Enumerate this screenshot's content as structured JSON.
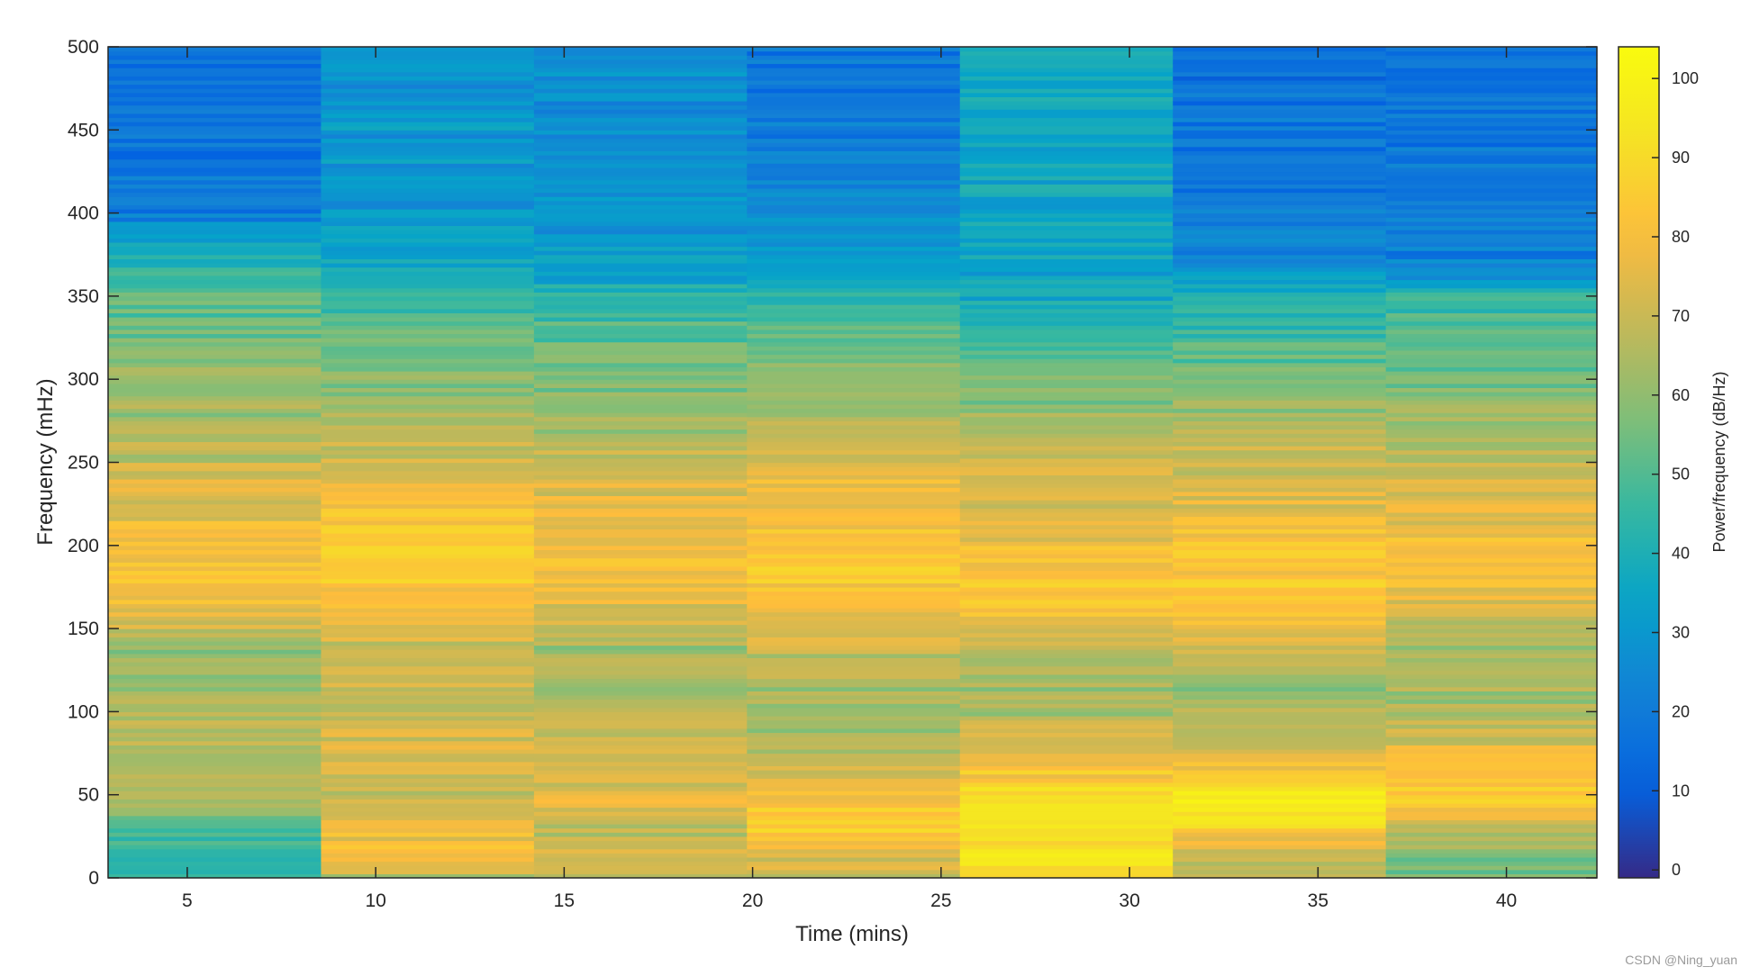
{
  "chart_data": {
    "type": "heatmap",
    "title": "",
    "xlabel": "Time (mins)",
    "ylabel": "Frequency (mHz)",
    "colorbar_label": "Power/frequency (dB/Hz)",
    "xlim": [
      2.9,
      42.4
    ],
    "ylim": [
      0,
      500
    ],
    "clim": [
      -1,
      104
    ],
    "xticks": [
      5,
      10,
      15,
      20,
      25,
      30,
      35,
      40
    ],
    "yticks": [
      0,
      50,
      100,
      150,
      200,
      250,
      300,
      350,
      400,
      450,
      500
    ],
    "cticks": [
      0,
      10,
      20,
      30,
      40,
      50,
      60,
      70,
      80,
      90,
      100
    ],
    "colormap": "parula",
    "time_segments": [
      {
        "start": 2.9,
        "end": 8.55
      },
      {
        "start": 8.55,
        "end": 14.2
      },
      {
        "start": 14.2,
        "end": 19.85
      },
      {
        "start": 19.85,
        "end": 25.5
      },
      {
        "start": 25.5,
        "end": 31.15
      },
      {
        "start": 31.15,
        "end": 36.8
      },
      {
        "start": 36.8,
        "end": 42.4
      }
    ],
    "profile_freqs": [
      0,
      5,
      15,
      25,
      40,
      50,
      60,
      75,
      100,
      120,
      140,
      150,
      160,
      180,
      200,
      220,
      240,
      260,
      280,
      300,
      330,
      350,
      360,
      380,
      400,
      420,
      450,
      480,
      500
    ],
    "profiles": [
      [
        50,
        46,
        48,
        46,
        60,
        66,
        70,
        68,
        66,
        60,
        64,
        70,
        80,
        82,
        80,
        78,
        74,
        68,
        64,
        62,
        56,
        52,
        48,
        38,
        22,
        20,
        18,
        16,
        16
      ],
      [
        60,
        74,
        80,
        80,
        74,
        72,
        72,
        74,
        74,
        70,
        72,
        80,
        82,
        86,
        84,
        82,
        76,
        72,
        66,
        60,
        52,
        44,
        38,
        34,
        32,
        32,
        32,
        30,
        30
      ],
      [
        68,
        70,
        72,
        70,
        74,
        78,
        74,
        72,
        66,
        64,
        64,
        72,
        76,
        80,
        80,
        78,
        74,
        68,
        62,
        58,
        52,
        44,
        38,
        32,
        30,
        30,
        30,
        28,
        28
      ],
      [
        66,
        72,
        74,
        86,
        86,
        80,
        72,
        70,
        62,
        66,
        72,
        78,
        82,
        86,
        82,
        80,
        78,
        72,
        64,
        60,
        52,
        44,
        38,
        32,
        26,
        24,
        22,
        20,
        20
      ],
      [
        90,
        92,
        94,
        96,
        94,
        90,
        86,
        76,
        66,
        64,
        70,
        76,
        82,
        84,
        80,
        76,
        74,
        70,
        62,
        56,
        46,
        38,
        36,
        36,
        38,
        38,
        38,
        38,
        38
      ],
      [
        72,
        70,
        76,
        80,
        100,
        98,
        86,
        74,
        66,
        62,
        72,
        80,
        84,
        86,
        82,
        78,
        74,
        70,
        64,
        58,
        48,
        40,
        32,
        24,
        22,
        20,
        20,
        18,
        18
      ],
      [
        62,
        58,
        60,
        64,
        82,
        86,
        84,
        78,
        66,
        64,
        66,
        70,
        76,
        82,
        82,
        76,
        72,
        66,
        62,
        58,
        50,
        48,
        28,
        22,
        22,
        20,
        20,
        16,
        16
      ]
    ]
  },
  "watermark": "CSDN @Ning_yuan"
}
